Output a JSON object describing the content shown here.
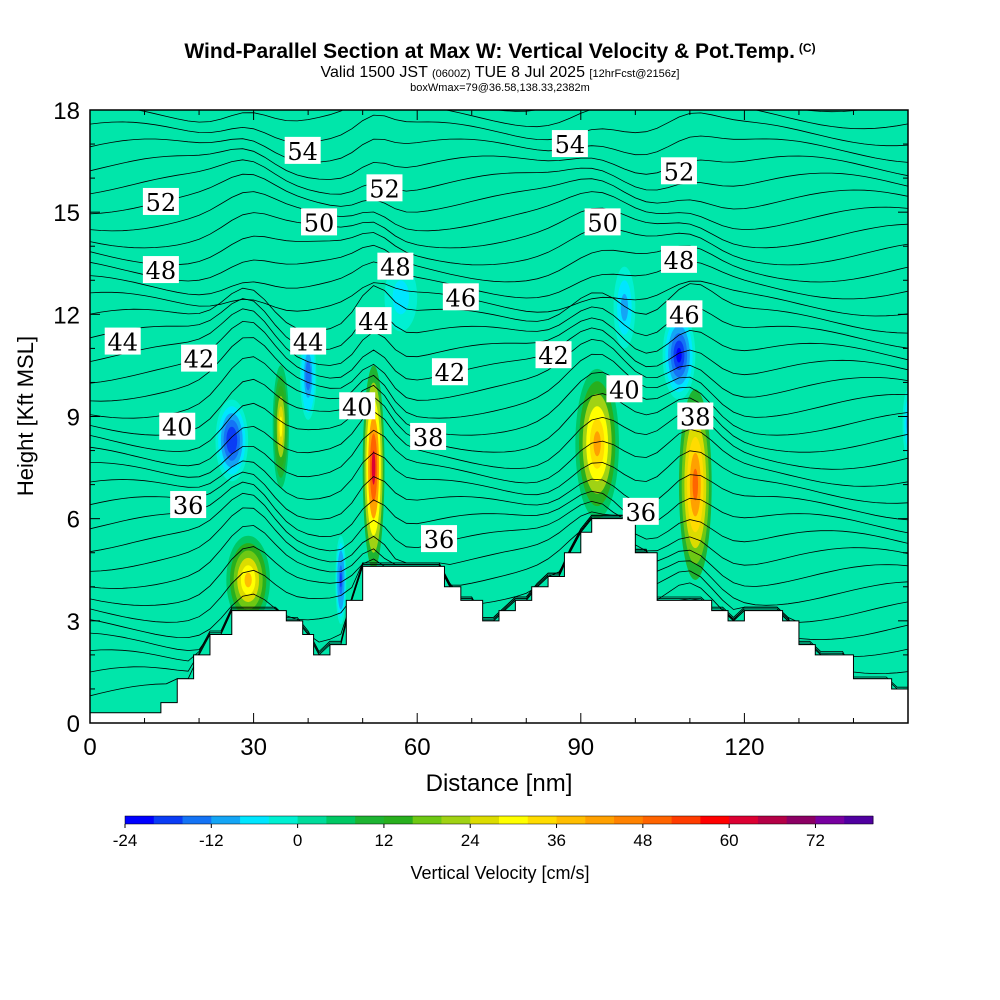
{
  "title": {
    "main": "Wind-Parallel Section at Max W: Vertical Velocity & Pot.Temp.",
    "copyright": "(C)",
    "valid_prefix": "Valid 1500 JST",
    "valid_utc": "(0600Z)",
    "valid_date": "TUE 8 Jul 2025",
    "forecast": "[12hrFcst@2156z]",
    "boxinfo": "boxWmax=79@36.58,138.33,2382m"
  },
  "chart_data": {
    "type": "heatmap",
    "description_of_fields": "filled contours of vertical velocity (cm/s) with potential temperature contour lines labeled",
    "xlabel": "Distance [nm]",
    "ylabel": "Height [Kft MSL]",
    "xlim": [
      0,
      150
    ],
    "ylim": [
      0,
      18
    ],
    "xticks": [
      0,
      30,
      60,
      90,
      120
    ],
    "yticks": [
      0,
      3,
      6,
      9,
      12,
      15,
      18
    ],
    "terrain_profile": [
      [
        0,
        0.3
      ],
      [
        13,
        0.3
      ],
      [
        13,
        0.6
      ],
      [
        16,
        0.6
      ],
      [
        16,
        1.3
      ],
      [
        19,
        1.3
      ],
      [
        19,
        2.0
      ],
      [
        22,
        2.0
      ],
      [
        22,
        2.6
      ],
      [
        26,
        2.6
      ],
      [
        26,
        3.3
      ],
      [
        36,
        3.3
      ],
      [
        36,
        3.0
      ],
      [
        39,
        3.0
      ],
      [
        39,
        2.6
      ],
      [
        41,
        2.6
      ],
      [
        41,
        2.0
      ],
      [
        44,
        2.0
      ],
      [
        44,
        2.3
      ],
      [
        47,
        2.3
      ],
      [
        47,
        3.6
      ],
      [
        50,
        3.6
      ],
      [
        50,
        4.6
      ],
      [
        65,
        4.6
      ],
      [
        65,
        4.0
      ],
      [
        68,
        4.0
      ],
      [
        68,
        3.6
      ],
      [
        72,
        3.6
      ],
      [
        72,
        3.0
      ],
      [
        75,
        3.0
      ],
      [
        75,
        3.3
      ],
      [
        78,
        3.3
      ],
      [
        78,
        3.6
      ],
      [
        81,
        3.6
      ],
      [
        81,
        4.0
      ],
      [
        84,
        4.0
      ],
      [
        84,
        4.3
      ],
      [
        87,
        4.3
      ],
      [
        87,
        5.0
      ],
      [
        90,
        5.0
      ],
      [
        90,
        5.6
      ],
      [
        92,
        5.6
      ],
      [
        92,
        6.0
      ],
      [
        100,
        6.0
      ],
      [
        100,
        5.0
      ],
      [
        104,
        5.0
      ],
      [
        104,
        3.6
      ],
      [
        114,
        3.6
      ],
      [
        114,
        3.3
      ],
      [
        117,
        3.3
      ],
      [
        117,
        3.0
      ],
      [
        120,
        3.0
      ],
      [
        120,
        3.3
      ],
      [
        127,
        3.3
      ],
      [
        127,
        3.0
      ],
      [
        130,
        3.0
      ],
      [
        130,
        2.3
      ],
      [
        133,
        2.3
      ],
      [
        133,
        2.0
      ],
      [
        140,
        2.0
      ],
      [
        140,
        1.3
      ],
      [
        147,
        1.3
      ],
      [
        147,
        1.0
      ],
      [
        150,
        1.0
      ]
    ],
    "w_cells": [
      {
        "x": 29,
        "y": 4.2,
        "rx": 4,
        "ry": 1.3,
        "w": 36
      },
      {
        "x": 35,
        "y": 8.7,
        "rx": 1.5,
        "ry": 1.8,
        "w": 30
      },
      {
        "x": 52,
        "y": 7.5,
        "rx": 2,
        "ry": 3,
        "w": 60
      },
      {
        "x": 93,
        "y": 8.2,
        "rx": 4,
        "ry": 2.2,
        "w": 42
      },
      {
        "x": 111,
        "y": 7.0,
        "rx": 3,
        "ry": 2.8,
        "w": 50
      },
      {
        "x": 26,
        "y": 8.3,
        "rx": 3,
        "ry": 1.2,
        "w": -20
      },
      {
        "x": 108,
        "y": 10.8,
        "rx": 3,
        "ry": 1.3,
        "w": -24
      },
      {
        "x": 46,
        "y": 4.2,
        "rx": 1,
        "ry": 1.3,
        "w": -18
      },
      {
        "x": 40,
        "y": 10.2,
        "rx": 1.5,
        "ry": 1.3,
        "w": -16
      },
      {
        "x": 98,
        "y": 12.2,
        "rx": 2,
        "ry": 1.2,
        "w": -10
      },
      {
        "x": 57,
        "y": 12.5,
        "rx": 3,
        "ry": 1.0,
        "w": -8
      },
      {
        "x": 150,
        "y": 8.8,
        "rx": 1,
        "ry": 1,
        "w": -12
      }
    ],
    "theta_labels": [
      {
        "text": "54",
        "x": 39,
        "y": 16.8
      },
      {
        "text": "54",
        "x": 88,
        "y": 17.0
      },
      {
        "text": "52",
        "x": 13,
        "y": 15.3
      },
      {
        "text": "52",
        "x": 54,
        "y": 15.7
      },
      {
        "text": "52",
        "x": 108,
        "y": 16.2
      },
      {
        "text": "50",
        "x": 42,
        "y": 14.7
      },
      {
        "text": "50",
        "x": 94,
        "y": 14.7
      },
      {
        "text": "48",
        "x": 13,
        "y": 13.3
      },
      {
        "text": "48",
        "x": 56,
        "y": 13.4
      },
      {
        "text": "48",
        "x": 108,
        "y": 13.6
      },
      {
        "text": "46",
        "x": 68,
        "y": 12.5
      },
      {
        "text": "46",
        "x": 109,
        "y": 12.0
      },
      {
        "text": "44",
        "x": 6,
        "y": 11.2
      },
      {
        "text": "44",
        "x": 40,
        "y": 11.2
      },
      {
        "text": "44",
        "x": 52,
        "y": 11.8
      },
      {
        "text": "42",
        "x": 20,
        "y": 10.7
      },
      {
        "text": "42",
        "x": 66,
        "y": 10.3
      },
      {
        "text": "42",
        "x": 85,
        "y": 10.8
      },
      {
        "text": "40",
        "x": 16,
        "y": 8.7
      },
      {
        "text": "40",
        "x": 49,
        "y": 9.3
      },
      {
        "text": "40",
        "x": 98,
        "y": 9.8
      },
      {
        "text": "38",
        "x": 62,
        "y": 8.4
      },
      {
        "text": "38",
        "x": 111,
        "y": 9.0
      },
      {
        "text": "36",
        "x": 18,
        "y": 6.4
      },
      {
        "text": "36",
        "x": 64,
        "y": 5.4
      },
      {
        "text": "36",
        "x": 101,
        "y": 6.2
      }
    ],
    "colorbar": {
      "label": "Vertical Velocity [cm/s]",
      "min": -24,
      "max": 80,
      "step": 4,
      "tick_labels": [
        "-24",
        "-12",
        "0",
        "12",
        "24",
        "36",
        "48",
        "60",
        "72"
      ],
      "colors": [
        "#0000ff",
        "#0a3cf5",
        "#1473f5",
        "#14a5f5",
        "#00e6ff",
        "#00f0d2",
        "#00dc9b",
        "#00c864",
        "#1eb432",
        "#28af1e",
        "#6ec814",
        "#a0d214",
        "#dcdc00",
        "#ffff00",
        "#ffdc00",
        "#ffbe00",
        "#ffa000",
        "#ff8200",
        "#ff6400",
        "#ff3c00",
        "#ff0000",
        "#dc0032",
        "#b40046",
        "#8c0064",
        "#7800a0",
        "#5000a0"
      ]
    }
  }
}
